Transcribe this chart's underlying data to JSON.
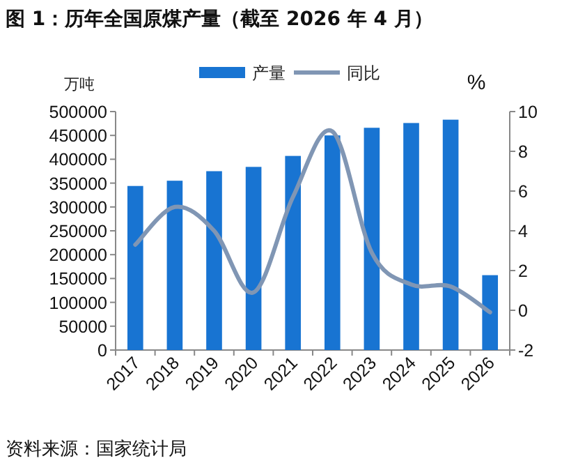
{
  "chart_data": {
    "type": "bar",
    "title": "图 1：历年全国原煤产量（截至 2026 年 4 月）",
    "categories": [
      "2017",
      "2018",
      "2019",
      "2020",
      "2021",
      "2022",
      "2023",
      "2024",
      "2025",
      "2026"
    ],
    "series": [
      {
        "name": "产量",
        "color": "#1874d2",
        "values": [
          344000,
          355000,
          375000,
          384000,
          407000,
          450000,
          466000,
          476000,
          483000,
          157000
        ]
      },
      {
        "name": "同比",
        "type": "line",
        "axis": "y2",
        "color": "#8096b4",
        "values": [
          3.3,
          5.2,
          4.0,
          0.9,
          5.7,
          9.0,
          2.9,
          1.3,
          1.2,
          -0.1
        ]
      }
    ],
    "ylabel": "万吨",
    "y2label": "%",
    "ylim": [
      0,
      500000
    ],
    "yticks": [
      0,
      50000,
      100000,
      150000,
      200000,
      250000,
      300000,
      350000,
      400000,
      450000,
      500000
    ],
    "y2lim": [
      -2,
      10
    ],
    "y2ticks": [
      -2,
      0,
      2,
      4,
      6,
      8,
      10
    ],
    "legend": "top",
    "grid": false,
    "annotations": [
      "资料来源：国家统计局"
    ]
  }
}
